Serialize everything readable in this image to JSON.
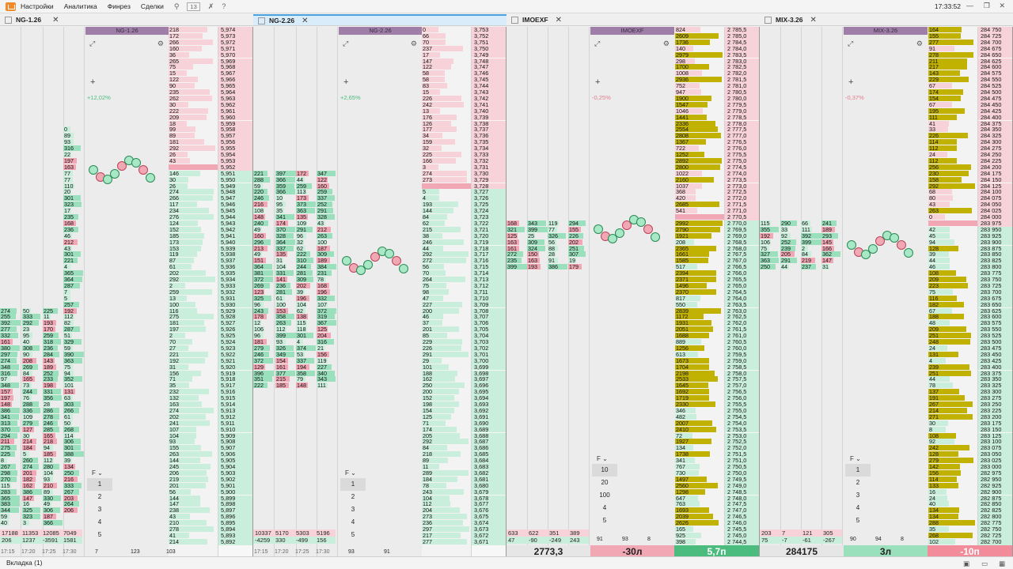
{
  "menu": {
    "items": [
      "Настройки",
      "Аналитика",
      "Финрез",
      "Сделки"
    ],
    "count_badge": "13",
    "clock": "17:33:52"
  },
  "panels": [
    {
      "tab": "NG-1.26",
      "chart_label": "NG-1.26",
      "pct": "+12,02%",
      "pct_sign": "pos",
      "f_label": "F",
      "f_rows": [
        "1",
        "2",
        "3",
        "4",
        "5"
      ],
      "prices_top": [
        "5,974",
        "5,973",
        "5,972",
        "5,971",
        "5,970",
        "5,969",
        "5,968",
        "5,967",
        "5,966",
        "5,965",
        "5,964",
        "5,963",
        "5,962",
        "5,961",
        "5,960",
        "5,959",
        "5,958",
        "5,957",
        "5,956",
        "5,955",
        "5,954",
        "5,953",
        "5,952",
        "5,951",
        "5,950",
        "5,949",
        "5,948",
        "5,947",
        "5,946",
        "5,945",
        "5,944",
        "5,943",
        "5,942",
        "5,941",
        "5,940",
        "5,939",
        "5,938",
        "5,937",
        "5,936",
        "5,935",
        "5,934",
        "5,933",
        "5,932",
        "5,931",
        "5,930",
        "5,929",
        "5,928",
        "5,927",
        "5,926",
        "5,925",
        "5,924",
        "5,923",
        "5,922",
        "5,921",
        "5,920",
        "5,919",
        "5,918",
        "5,917",
        "5,916",
        "5,915",
        "5,914",
        "5,913",
        "5,912",
        "5,911",
        "5,910",
        "5,909",
        "5,908",
        "5,907",
        "5,906",
        "5,905",
        "5,904",
        "5,903",
        "5,902",
        "5,901",
        "5,900",
        "5,899",
        "5,898",
        "5,897",
        "5,896",
        "5,895",
        "5,894",
        "5,893",
        "5,892"
      ],
      "stats": [
        "17188",
        "11353",
        "12085",
        "7049",
        "206",
        "1237",
        "-3591",
        "1581"
      ],
      "times": [
        "17:15",
        "17:20",
        "17:25",
        "17:30"
      ],
      "bottom_vals": [
        "7",
        "123",
        "103"
      ]
    },
    {
      "tab": "NG-2.26",
      "chart_label": "NG-2.26",
      "pct": "+2,65%",
      "pct_sign": "pos",
      "f_label": "F",
      "f_rows": [
        "1",
        "2",
        "3",
        "4",
        "5"
      ],
      "prices_top": [
        "3,753",
        "3,752",
        "3,751",
        "3,750",
        "3,749",
        "3,748",
        "3,747",
        "3,746",
        "3,745",
        "3,744",
        "3,743",
        "3,742",
        "3,741",
        "3,740",
        "3,739",
        "3,738",
        "3,737",
        "3,736",
        "3,735",
        "3,734",
        "3,733",
        "3,732",
        "3,731",
        "3,730",
        "3,729",
        "3,728",
        "3,727",
        "3,726",
        "3,725",
        "3,724",
        "3,723",
        "3,722",
        "3,721",
        "3,720",
        "3,719",
        "3,718",
        "3,717",
        "3,716",
        "3,715",
        "3,714",
        "3,713",
        "3,712",
        "3,711",
        "3,710",
        "3,709",
        "3,708",
        "3,707",
        "3,706",
        "3,705",
        "3,704",
        "3,703",
        "3,702",
        "3,701",
        "3,700",
        "3,699",
        "3,698",
        "3,697",
        "3,696",
        "3,695",
        "3,694",
        "3,693",
        "3,692",
        "3,691",
        "3,690",
        "3,689",
        "3,688",
        "3,687",
        "3,686",
        "3,685",
        "3,684",
        "3,683",
        "3,682",
        "3,681",
        "3,680",
        "3,679",
        "3,678",
        "3,677",
        "3,676",
        "3,675",
        "3,674",
        "3,673",
        "3,672",
        "3,671"
      ],
      "stats": [
        "10337",
        "5170",
        "5303",
        "5196",
        "-4259",
        "330",
        "-499",
        "156"
      ],
      "times": [
        "17:15",
        "17:20",
        "17:25",
        "17:30"
      ],
      "bottom_vals": [
        "93",
        "91"
      ]
    },
    {
      "tab": "IMOEXF",
      "chart_label": "IMOEXF",
      "pct": "-0,25%",
      "pct_sign": "neg",
      "f_label": "F",
      "f_rows": [
        "10",
        "20",
        "100",
        "4",
        "5"
      ],
      "prices_top": [
        "2 785,5",
        "2 785,0",
        "2 784,5",
        "2 784,0",
        "2 783,5",
        "2 783,0",
        "2 782,5",
        "2 782,0",
        "2 781,5",
        "2 781,0",
        "2 780,5",
        "2 780,0",
        "2 779,5",
        "2 779,0",
        "2 778,5",
        "2 778,0",
        "2 777,5",
        "2 777,0",
        "2 776,5",
        "2 776,0",
        "2 775,5",
        "2 775,0",
        "2 774,5",
        "2 774,0",
        "2 773,5",
        "2 773,0",
        "2 772,5",
        "2 772,0",
        "2 771,5",
        "2 771,0",
        "2 770,5",
        "2 770,0",
        "2 769,5",
        "2 769,0",
        "2 768,5",
        "2 768,0",
        "2 767,5",
        "2 767,0",
        "2 766,5",
        "2 766,0",
        "2 765,5",
        "2 765,0",
        "2 764,5",
        "2 764,0",
        "2 763,5",
        "2 763,0",
        "2 762,5",
        "2 762,0",
        "2 761,5",
        "2 761,0",
        "2 760,5",
        "2 760,0",
        "2 759,5",
        "2 759,0",
        "2 758,5",
        "2 758,0",
        "2 757,5",
        "2 757,0",
        "2 756,5",
        "2 756,0",
        "2 755,5",
        "2 755,0",
        "2 754,5",
        "2 754,0",
        "2 753,5",
        "2 753,0",
        "2 752,5",
        "2 752,0",
        "2 751,5",
        "2 751,0",
        "2 750,5",
        "2 750,0",
        "2 749,5",
        "2 749,0",
        "2 748,5",
        "2 748,0",
        "2 747,5",
        "2 747,0",
        "2 746,5",
        "2 746,0",
        "2 745,5",
        "2 745,0",
        "2 744,5"
      ],
      "stats": [
        "633",
        "622",
        "351",
        "389",
        "47",
        "-90",
        "-249",
        "243"
      ],
      "times": [
        "17:15",
        "17:20",
        "17:25",
        "17:30"
      ],
      "big_price": "2773,3",
      "delta1": "-30л",
      "delta2": "5,7п",
      "bottom_vals": [
        "91",
        "93",
        "8"
      ]
    },
    {
      "tab": "MIX-3.26",
      "chart_label": "MIX-3.26",
      "pct": "-0,37%",
      "pct_sign": "neg",
      "f_label": "F",
      "f_rows": [
        "1",
        "2",
        "3",
        "4",
        "5"
      ],
      "prices_top": [
        "284 750",
        "284 725",
        "284 700",
        "284 675",
        "284 650",
        "284 625",
        "284 600",
        "284 575",
        "284 550",
        "284 525",
        "284 500",
        "284 475",
        "284 450",
        "284 425",
        "284 400",
        "284 375",
        "284 350",
        "284 325",
        "284 300",
        "284 275",
        "284 250",
        "284 225",
        "284 200",
        "284 175",
        "284 150",
        "284 125",
        "284 100",
        "284 075",
        "284 050",
        "284 025",
        "284 000",
        "283 975",
        "283 950",
        "283 925",
        "283 900",
        "283 875",
        "283 850",
        "283 825",
        "283 800",
        "283 775",
        "283 750",
        "283 725",
        "283 700",
        "283 675",
        "283 650",
        "283 625",
        "283 600",
        "283 575",
        "283 550",
        "283 525",
        "283 500",
        "283 475",
        "283 450",
        "283 425",
        "283 400",
        "283 375",
        "283 350",
        "283 325",
        "283 300",
        "283 275",
        "283 250",
        "283 225",
        "283 200",
        "283 175",
        "283 150",
        "283 125",
        "283 100",
        "283 075",
        "283 050",
        "283 025",
        "283 000",
        "282 975",
        "282 950",
        "282 925",
        "282 900",
        "282 875",
        "282 850",
        "282 825",
        "282 800",
        "282 775",
        "282 750",
        "282 725",
        "282 700"
      ],
      "stats": [
        "203",
        "7",
        "121",
        "305",
        "75",
        "-7",
        "-61",
        "-267"
      ],
      "times": [
        "17:20",
        "17:25",
        "17:30"
      ],
      "big_price": "284175",
      "delta1": "3л",
      "delta2": "-10п",
      "bottom_vals": [
        "90",
        "94",
        "8"
      ]
    }
  ],
  "status": {
    "tab": "Вкладка (1)"
  },
  "colors": {
    "buy": "#9be0bd",
    "sell": "#f2a8b4",
    "volume": "#c1b100",
    "title_bar": "#9f7fa8",
    "active_tab": "#4aa3df"
  }
}
